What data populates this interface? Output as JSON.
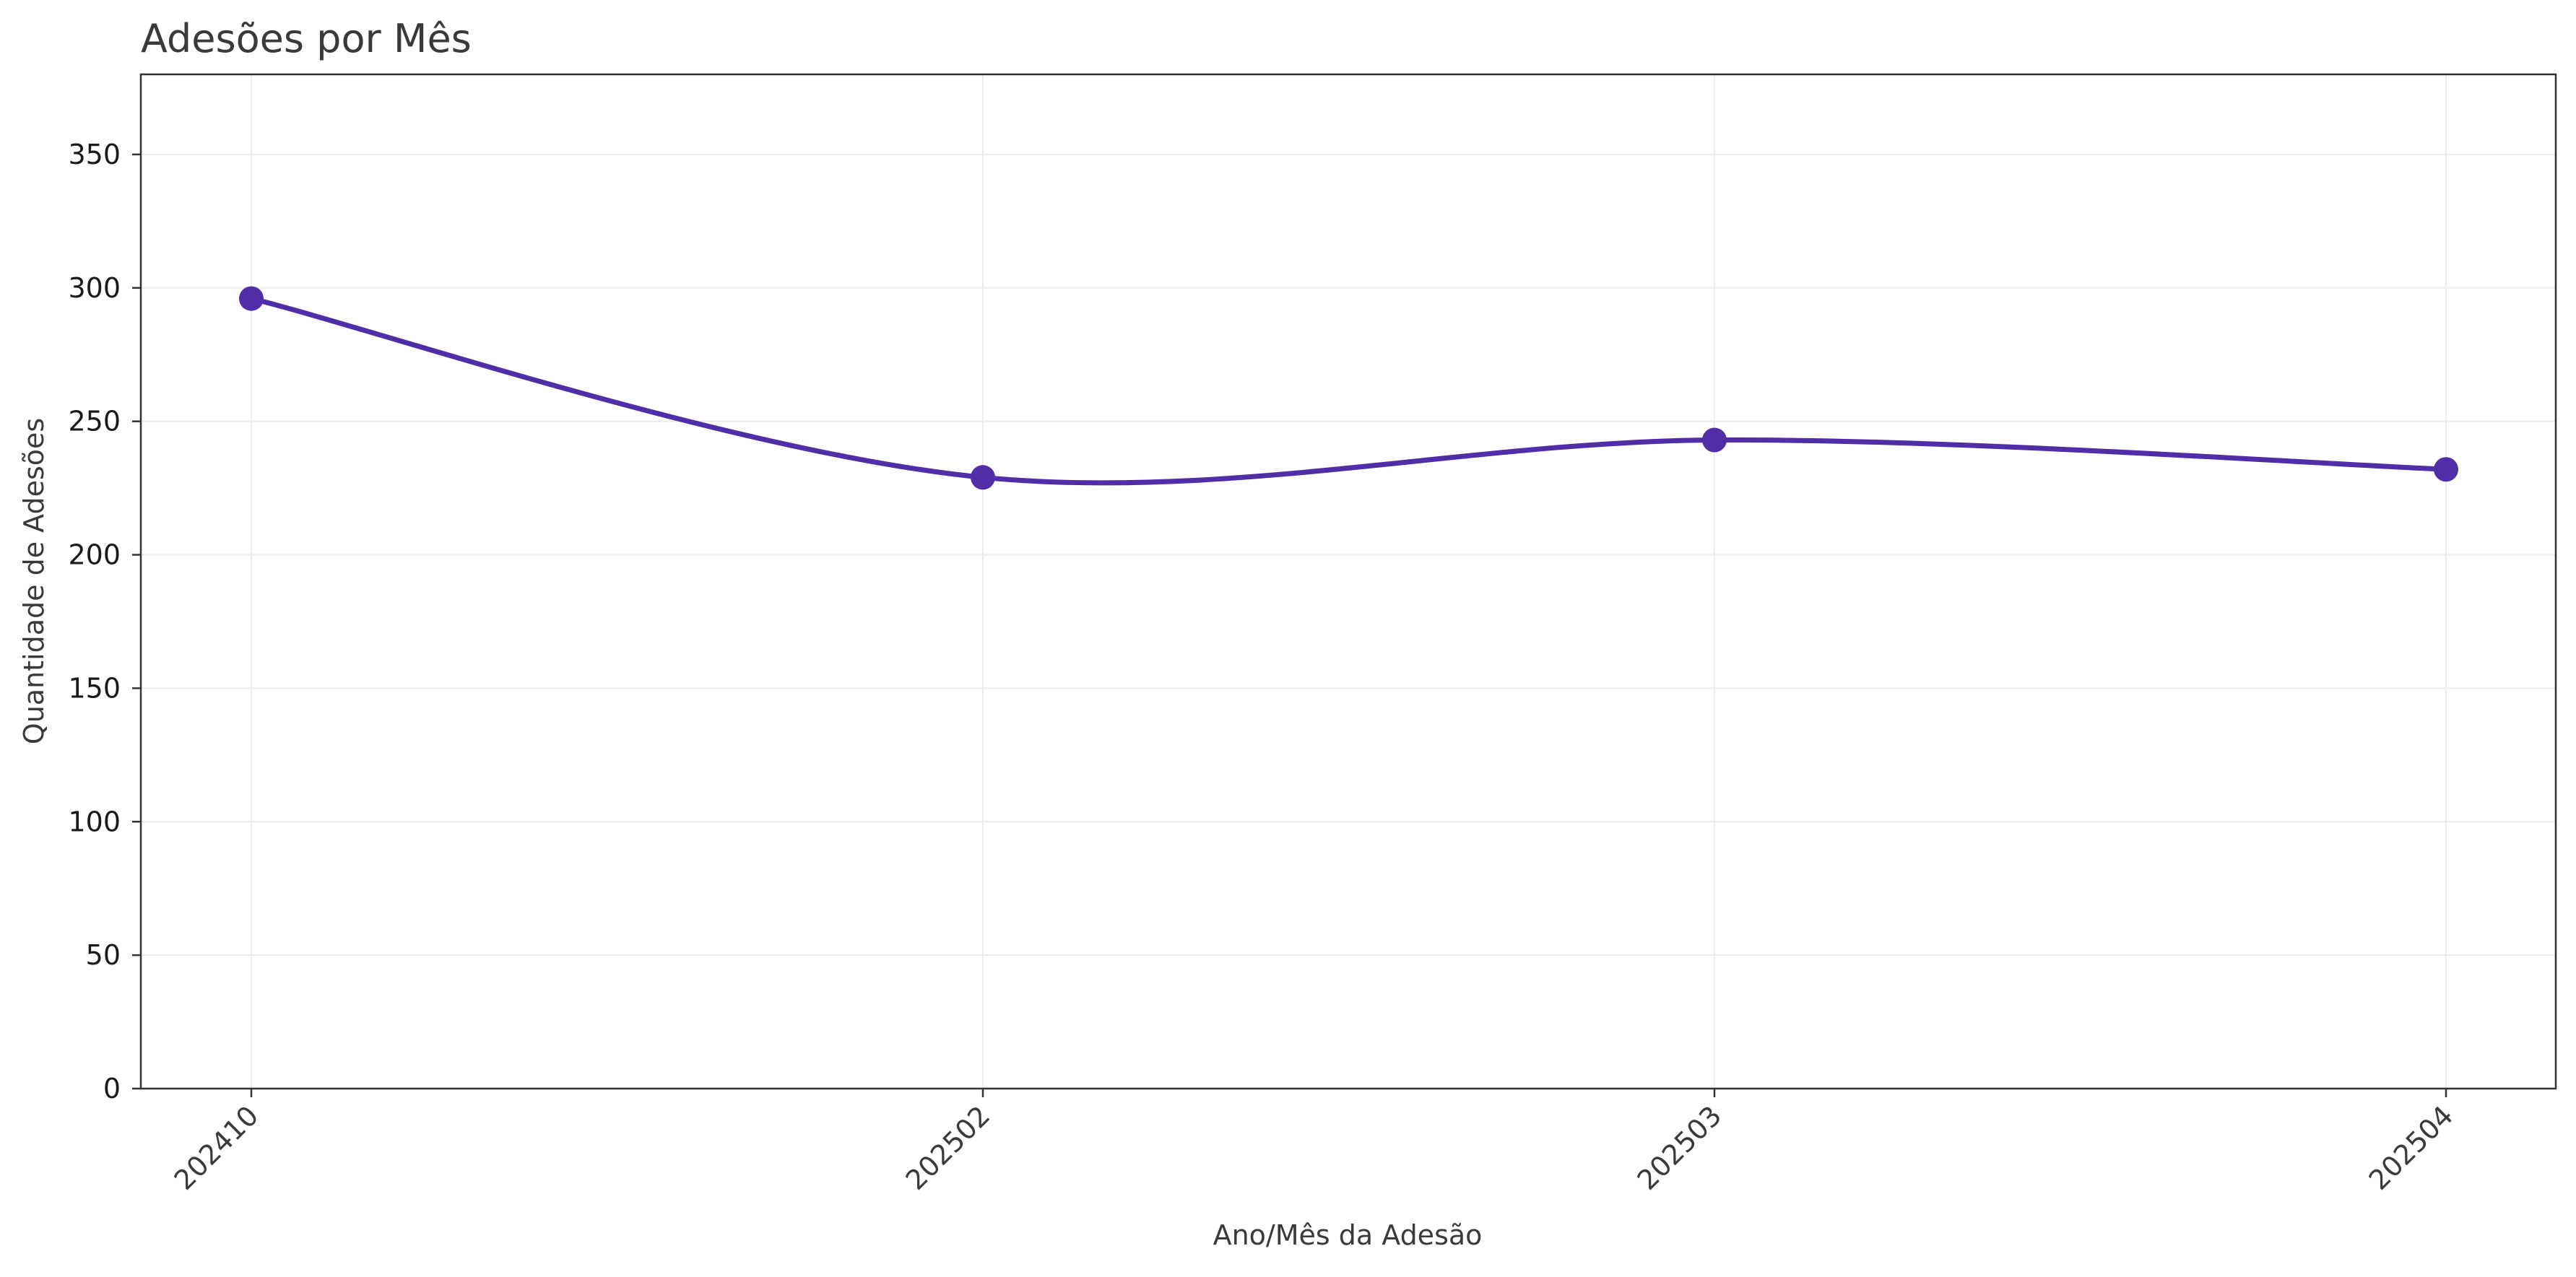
{
  "chart_data": {
    "type": "line",
    "title": "Adesões por Mês",
    "xlabel": "Ano/Mês da Adesão",
    "ylabel": "Quantidade de Adesões",
    "categories": [
      "202410",
      "202502",
      "202503",
      "202504"
    ],
    "series": [
      {
        "values": [
          296,
          229,
          243,
          232
        ],
        "color": "#512DA8"
      }
    ],
    "ylim": [
      0,
      380
    ],
    "yticks": [
      0,
      50,
      100,
      150,
      200,
      250,
      300,
      350
    ],
    "x_tick_rotation": 45,
    "grid": true,
    "smooth": true,
    "markers": "circle",
    "legend": "none",
    "colors": {
      "line": "#512DA8",
      "title": "#3a3a3a",
      "axis_label": "#3a3a3a",
      "tick_label": "#1a1a1a",
      "grid": "#ececec",
      "frame": "#333333"
    }
  }
}
